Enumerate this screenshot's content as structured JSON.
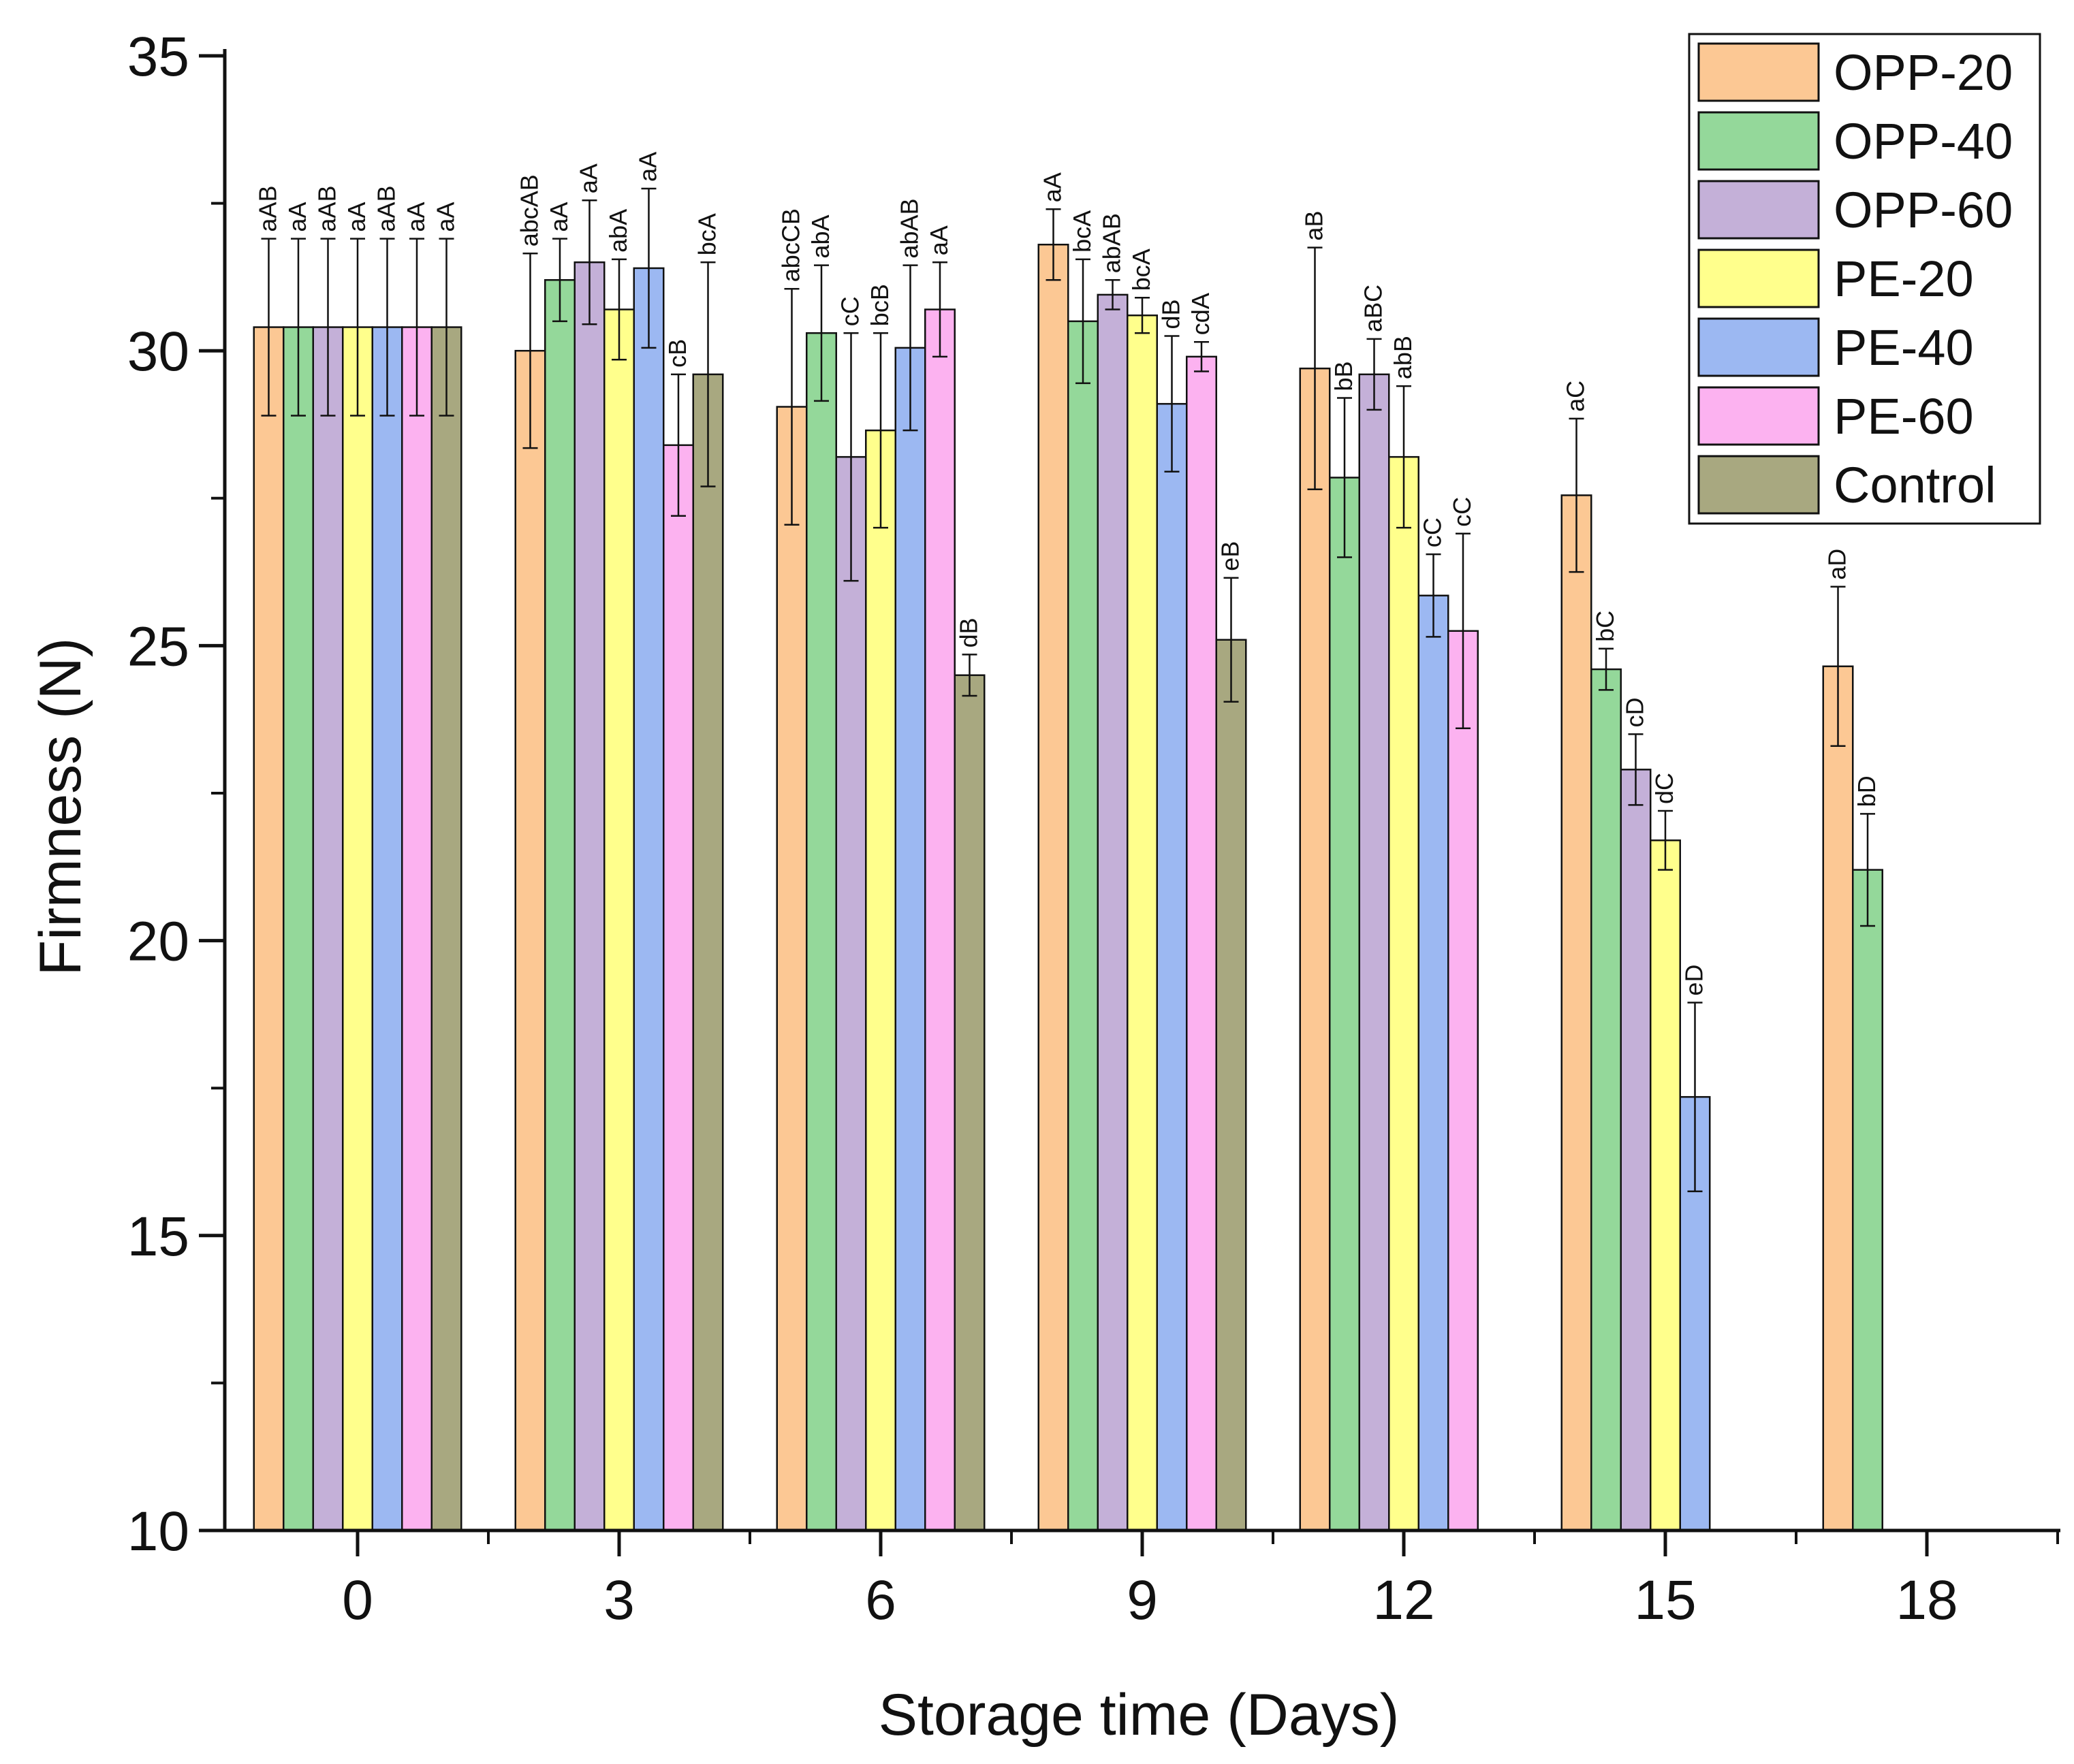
{
  "chart_data": {
    "type": "bar",
    "title": "",
    "xlabel": "Storage time (Days)",
    "ylabel": "Firmness (N)",
    "ylim": [
      10,
      35
    ],
    "yticks": [
      10,
      15,
      20,
      25,
      30,
      35
    ],
    "grid": false,
    "legend_position": "top-right",
    "categories": [
      "0",
      "3",
      "6",
      "9",
      "12",
      "15",
      "18"
    ],
    "series": [
      {
        "name": "OPP-20",
        "color": "#fcc894",
        "values": [
          30.4,
          30.0,
          29.05,
          31.8,
          29.7,
          27.55,
          24.65
        ],
        "errors": [
          1.5,
          1.65,
          2.0,
          0.6,
          2.05,
          1.3,
          1.35
        ],
        "labels": [
          "aAB",
          "abcAB",
          "abcCB",
          "aA",
          "aB",
          "aC",
          "aD"
        ]
      },
      {
        "name": "OPP-40",
        "color": "#94d89a",
        "values": [
          30.4,
          31.2,
          30.3,
          30.5,
          27.85,
          24.6,
          21.2
        ],
        "errors": [
          1.5,
          0.7,
          1.15,
          1.05,
          1.35,
          0.35,
          0.95
        ],
        "labels": [
          "aA",
          "aA",
          "abA",
          "bcA",
          "bB",
          "bC",
          "bD"
        ]
      },
      {
        "name": "OPP-60",
        "color": "#c4b0d8",
        "values": [
          30.4,
          31.5,
          28.2,
          30.95,
          29.6,
          22.9,
          null
        ],
        "errors": [
          1.5,
          1.05,
          2.1,
          0.25,
          0.6,
          0.6,
          null
        ],
        "labels": [
          "aAB",
          "aA",
          "cC",
          "abAB",
          "aBC",
          "cD",
          ""
        ]
      },
      {
        "name": "PE-20",
        "color": "#ffff8c",
        "values": [
          30.4,
          30.7,
          28.65,
          30.6,
          28.2,
          21.7,
          null
        ],
        "errors": [
          1.5,
          0.85,
          1.65,
          0.3,
          1.2,
          0.5,
          null
        ],
        "labels": [
          "aA",
          "abA",
          "bcB",
          "bcA",
          "abB",
          "dC",
          ""
        ]
      },
      {
        "name": "PE-40",
        "color": "#9cb8f2",
        "values": [
          30.4,
          31.4,
          30.05,
          29.1,
          25.85,
          17.35,
          null
        ],
        "errors": [
          1.5,
          1.35,
          1.4,
          1.15,
          0.7,
          1.6,
          null
        ],
        "labels": [
          "aAB",
          "aA",
          "abAB",
          "dB",
          "cC",
          "eD",
          ""
        ]
      },
      {
        "name": "PE-60",
        "color": "#fcb2f0",
        "values": [
          30.4,
          28.4,
          30.7,
          29.9,
          25.25,
          null,
          null
        ],
        "errors": [
          1.5,
          1.2,
          0.8,
          0.25,
          1.65,
          null,
          null
        ],
        "labels": [
          "aA",
          "cB",
          "aA",
          "cdA",
          "cC",
          "",
          ""
        ]
      },
      {
        "name": "Control",
        "color": "#a8a880",
        "values": [
          30.4,
          29.6,
          24.5,
          25.1,
          null,
          null,
          null
        ],
        "errors": [
          1.5,
          1.9,
          0.35,
          1.05,
          null,
          null,
          null
        ],
        "labels": [
          "aA",
          "bcA",
          "dB",
          "eB",
          "",
          "",
          ""
        ]
      }
    ]
  }
}
